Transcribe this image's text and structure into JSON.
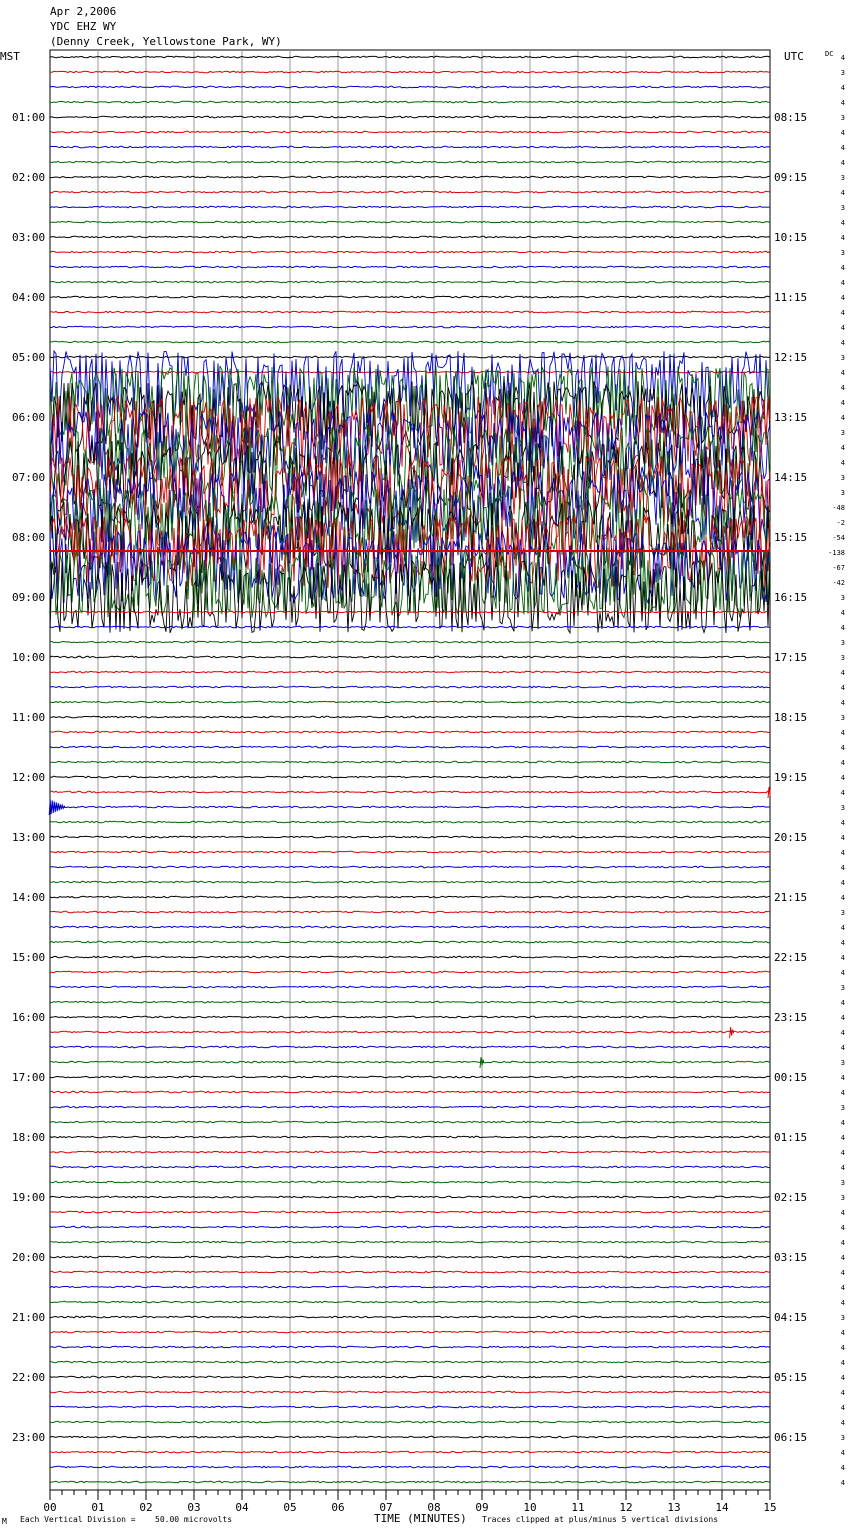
{
  "header": {
    "date": "Apr 2,2006",
    "station": "YDC EHZ WY",
    "location": "(Denny Creek, Yellowstone Park, WY)"
  },
  "left_zone": "MST",
  "right_zone": "UTC",
  "dc_label": "DC",
  "footer": {
    "corner_mark": "M",
    "scale_note": "Each Vertical Division =",
    "scale_value": "50.00 microvolts",
    "clip_note": "Traces clipped at plus/minus 5 vertical divisions"
  },
  "chart_data": {
    "type": "line",
    "title": "",
    "xlabel": "TIME (MINUTES)",
    "ylabel": "",
    "xlim": [
      0,
      15
    ],
    "x_tick_labels": [
      "00",
      "01",
      "02",
      "03",
      "04",
      "05",
      "06",
      "07",
      "08",
      "09",
      "10",
      "11",
      "12",
      "13",
      "14",
      "15"
    ],
    "left_hour_labels": [
      "01:00",
      "02:00",
      "03:00",
      "04:00",
      "05:00",
      "06:00",
      "07:00",
      "08:00",
      "09:00",
      "10:00",
      "11:00",
      "12:00",
      "13:00",
      "14:00",
      "15:00",
      "16:00",
      "17:00",
      "18:00",
      "19:00",
      "20:00",
      "21:00",
      "22:00",
      "23:00"
    ],
    "right_hour_labels": [
      "08:15",
      "09:15",
      "10:15",
      "11:15",
      "12:15",
      "13:15",
      "14:15",
      "15:15",
      "16:15",
      "17:15",
      "18:15",
      "19:15",
      "20:15",
      "21:15",
      "22:15",
      "23:15",
      "00:15",
      "01:15",
      "02:15",
      "03:15",
      "04:15",
      "05:15",
      "06:15"
    ],
    "trace_colors": [
      "#000000",
      "#dd0000",
      "#0000cc",
      "#006600"
    ],
    "trace_count": 96,
    "noisy_trace_range": [
      22,
      36
    ],
    "dc_offsets": [
      "4",
      "3",
      "4",
      "4",
      "3",
      "4",
      "4",
      "4",
      "3",
      "4",
      "3",
      "4",
      "4",
      "3",
      "4",
      "4",
      "4",
      "4",
      "4",
      "4",
      "3",
      "4",
      "4",
      "4",
      "4",
      "3",
      "4",
      "4",
      "3",
      "3",
      "-48",
      "-2",
      "-54",
      "-138",
      "-67",
      "-42",
      "3",
      "4",
      "4",
      "3",
      "3",
      "4",
      "4",
      "4",
      "3",
      "4",
      "4",
      "4",
      "4",
      "4",
      "3",
      "4",
      "4",
      "4",
      "4",
      "4",
      "4",
      "3",
      "4",
      "4",
      "4",
      "4",
      "3",
      "4",
      "4",
      "4",
      "4",
      "3",
      "4",
      "4",
      "3",
      "4",
      "4",
      "4",
      "4",
      "3",
      "3",
      "4",
      "4",
      "4",
      "4",
      "4",
      "4",
      "4",
      "3",
      "4",
      "4",
      "4",
      "4",
      "4",
      "4",
      "4",
      "3",
      "4",
      "4",
      "4"
    ],
    "events": [
      {
        "trace": 50,
        "minute": 0.15,
        "description": "local event burst"
      },
      {
        "trace": 49,
        "minute": 15.0,
        "description": "small spike"
      },
      {
        "trace": 65,
        "minute": 14.2,
        "description": "small spike"
      },
      {
        "trace": 67,
        "minute": 9.0,
        "description": "small spike"
      }
    ]
  }
}
